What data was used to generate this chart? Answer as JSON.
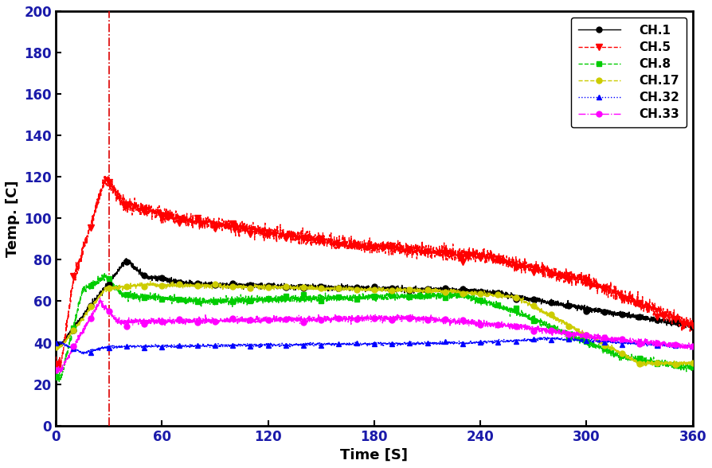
{
  "xlabel": "Time [S]",
  "ylabel": "Temp. [C]",
  "xlim": [
    0,
    360
  ],
  "ylim": [
    0,
    200
  ],
  "xticks": [
    0,
    60,
    120,
    180,
    240,
    300,
    360
  ],
  "yticks": [
    0,
    20,
    40,
    60,
    80,
    100,
    120,
    140,
    160,
    180,
    200
  ],
  "vline_x": 30,
  "vline_color": "#dd0000",
  "channels": [
    "CH.1",
    "CH.5",
    "CH.8",
    "CH.17",
    "CH.32",
    "CH.33"
  ],
  "colors": [
    "#000000",
    "#ff0000",
    "#00cc00",
    "#cccc00",
    "#0000ff",
    "#ff00ff"
  ],
  "bg_color": "#ffffff"
}
